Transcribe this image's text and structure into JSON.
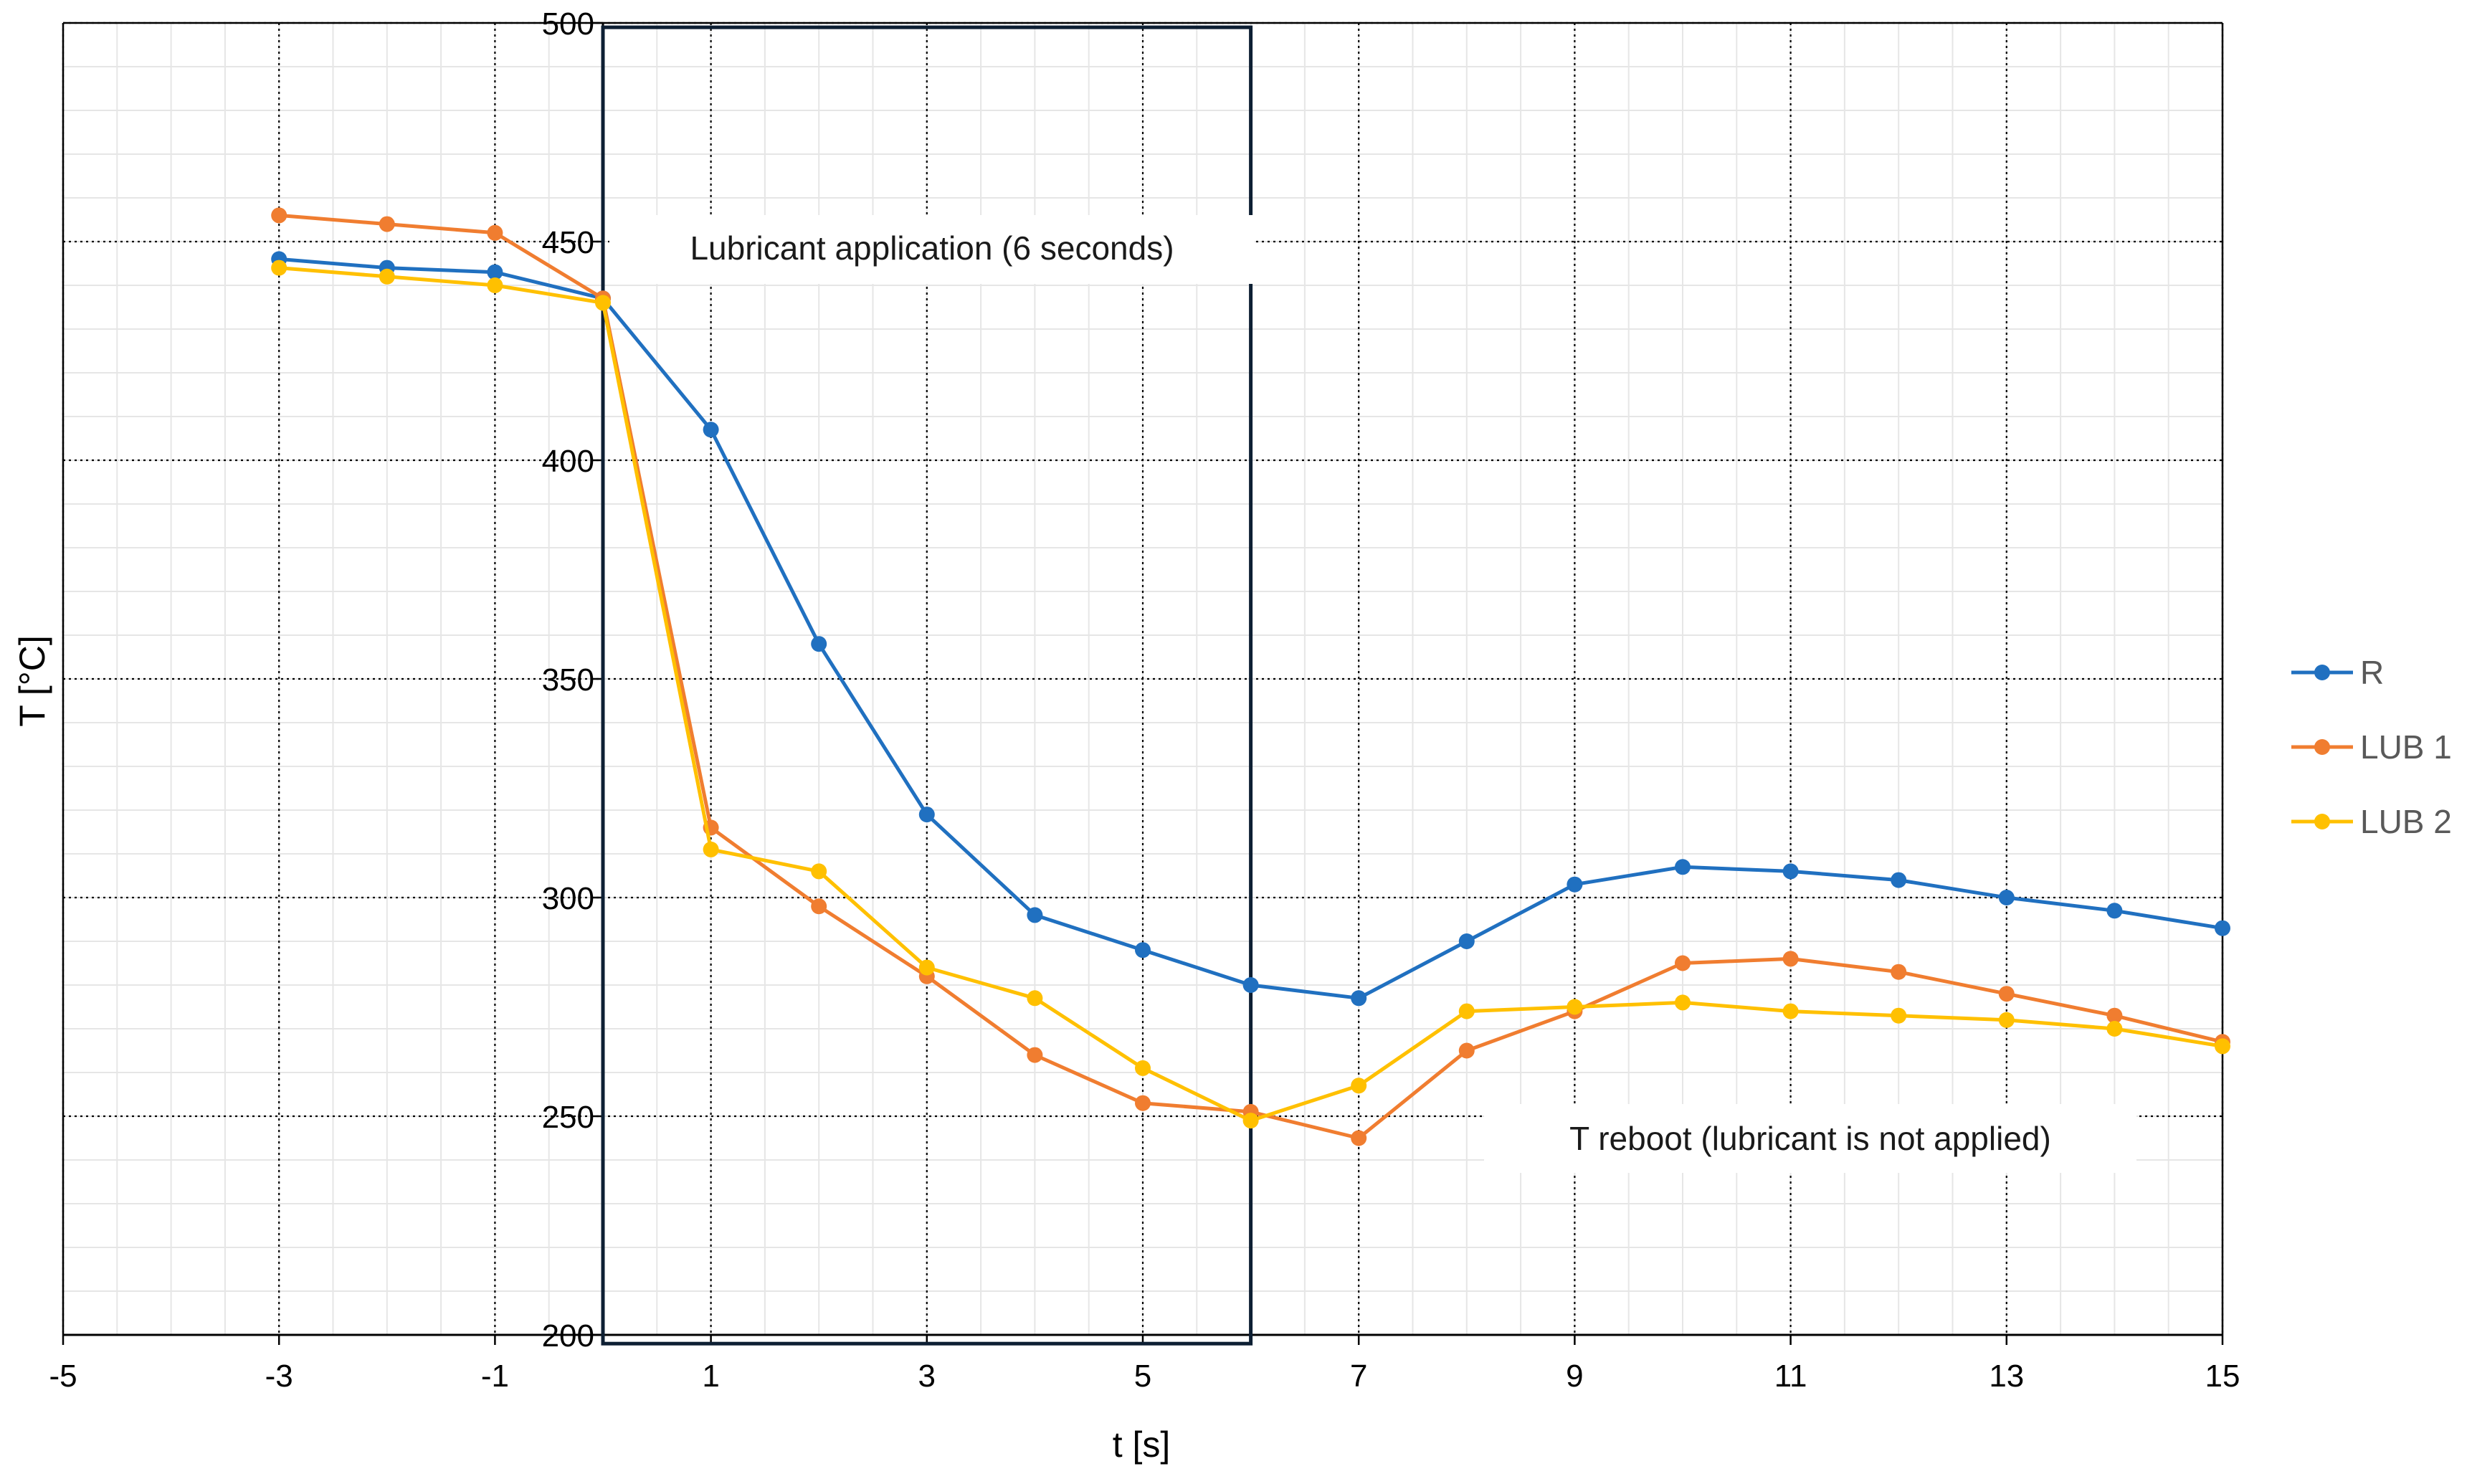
{
  "chart_data": {
    "type": "line",
    "title": "",
    "xlabel": "t [s]",
    "ylabel": "T [°C]",
    "xlim": [
      -5,
      15
    ],
    "ylim": [
      200,
      500
    ],
    "x_ticks": [
      -5,
      -3,
      -1,
      1,
      3,
      5,
      7,
      9,
      11,
      13,
      15
    ],
    "y_ticks": [
      200,
      250,
      300,
      350,
      400,
      450,
      500
    ],
    "x_minor_step": 0.5,
    "y_minor_step": 10,
    "grid": true,
    "legend_position": "right",
    "x": [
      -3,
      -2,
      -1,
      0,
      1,
      2,
      3,
      4,
      5,
      6,
      7,
      8,
      9,
      10,
      11,
      12,
      13,
      14,
      15
    ],
    "series": [
      {
        "name": "R",
        "color": "#2070C0",
        "values": [
          446,
          444,
          443,
          437,
          407,
          358,
          319,
          296,
          288,
          280,
          277,
          290,
          303,
          307,
          306,
          304,
          300,
          297,
          293
        ]
      },
      {
        "name": "LUB 1",
        "color": "#F07D30",
        "values": [
          456,
          454,
          452,
          437,
          316,
          298,
          282,
          264,
          253,
          251,
          245,
          265,
          274,
          285,
          286,
          283,
          278,
          273,
          267
        ]
      },
      {
        "name": "LUB 2",
        "color": "#FFC000",
        "values": [
          444,
          442,
          440,
          436,
          311,
          306,
          284,
          277,
          261,
          249,
          257,
          274,
          275,
          276,
          274,
          273,
          272,
          270,
          266
        ]
      }
    ],
    "annotations": [
      {
        "text": "Lubricant application (6 seconds)",
        "x_start": 0,
        "x_end": 6,
        "y_bottom": 198,
        "y_top": 499,
        "label_y": 449
      },
      {
        "text": "T reboot (lubricant is not applied)",
        "x_center": 11.2,
        "y": 244
      }
    ]
  }
}
